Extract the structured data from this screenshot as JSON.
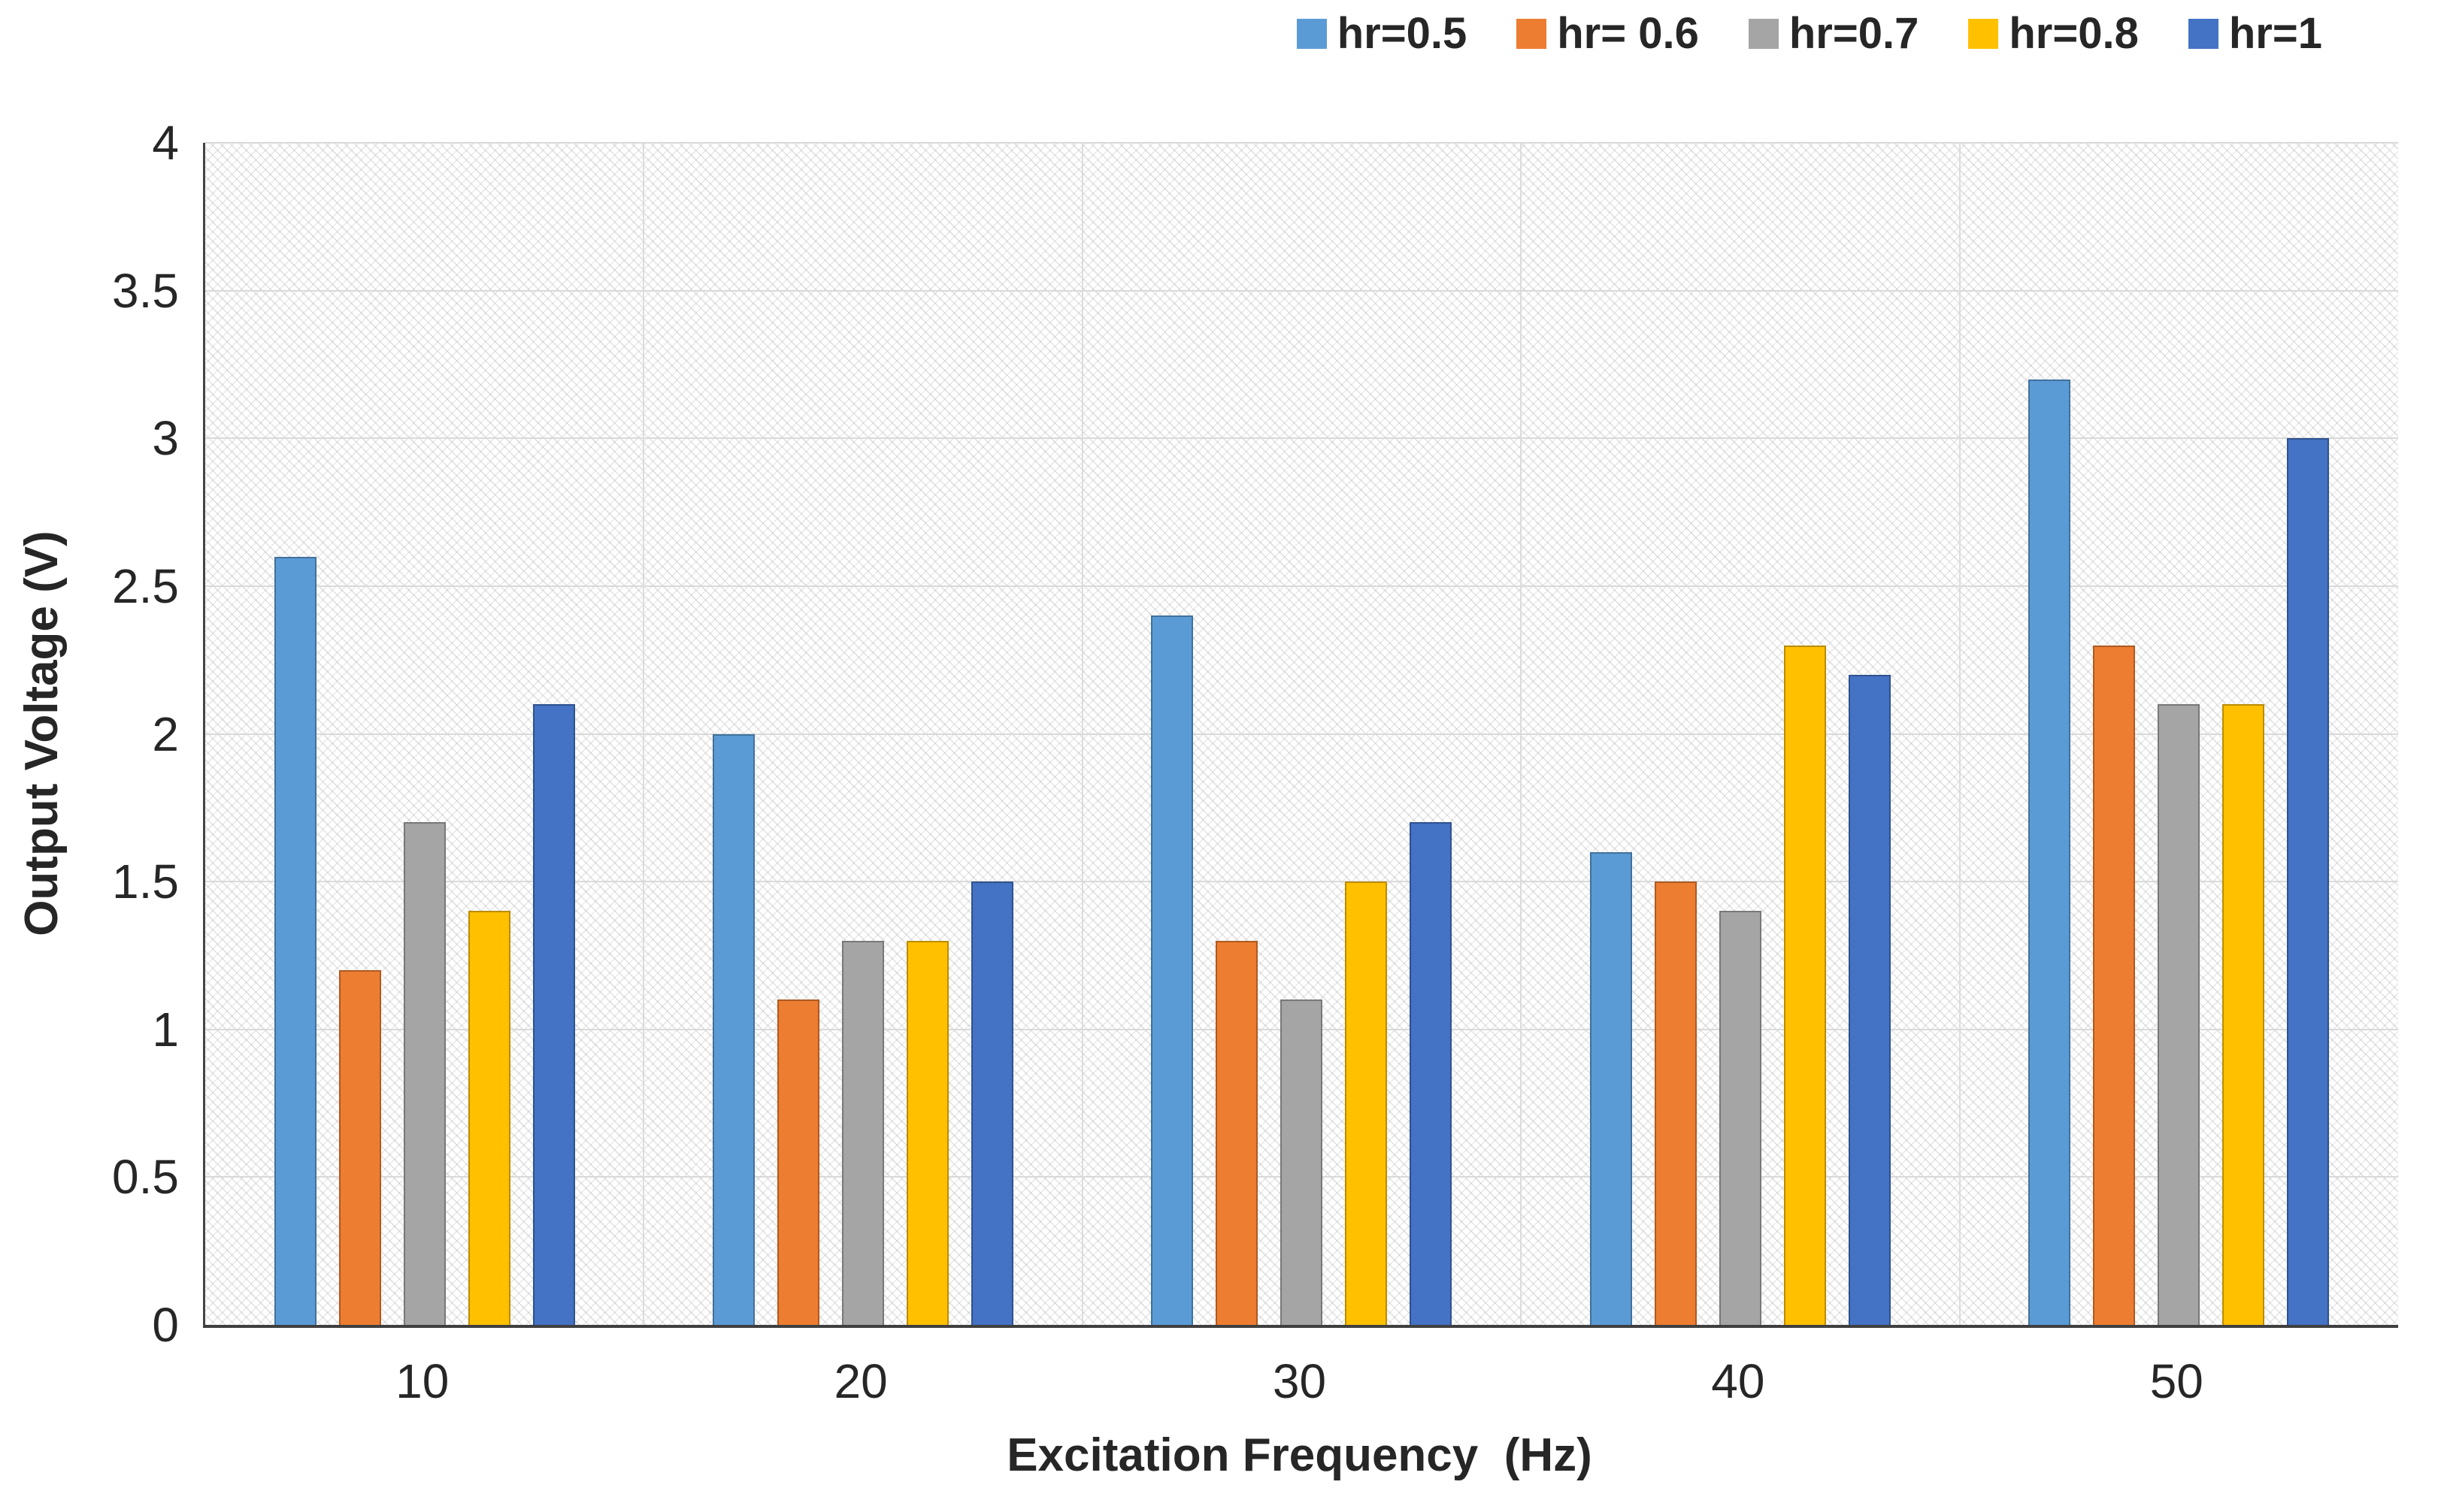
{
  "chart_data": {
    "type": "bar",
    "title": "",
    "xlabel": "Excitation Frequency  (Hz)",
    "ylabel": "Output Voltage (V)",
    "categories": [
      "10",
      "20",
      "30",
      "40",
      "50"
    ],
    "series": [
      {
        "name": "hr=0.5",
        "color": "#5B9BD5",
        "border_color": "#41719C",
        "values": [
          2.6,
          2.0,
          2.4,
          1.6,
          3.2
        ]
      },
      {
        "name": "hr= 0.6",
        "color": "#ED7D31",
        "border_color": "#AE5A21",
        "values": [
          1.2,
          1.1,
          1.3,
          1.5,
          2.3
        ]
      },
      {
        "name": "hr=0.7",
        "color": "#A5A5A5",
        "border_color": "#787878",
        "values": [
          1.7,
          1.3,
          1.1,
          1.4,
          2.1
        ]
      },
      {
        "name": "hr=0.8",
        "color": "#FFC000",
        "border_color": "#BC8C00",
        "values": [
          1.4,
          1.3,
          1.5,
          2.3,
          2.1
        ]
      },
      {
        "name": "hr=1",
        "color": "#4472C4",
        "border_color": "#2F528F",
        "values": [
          2.1,
          1.5,
          1.7,
          2.2,
          3.0
        ]
      }
    ],
    "ylim": [
      0,
      4
    ],
    "yticks": [
      0,
      0.5,
      1,
      1.5,
      2,
      2.5,
      3,
      3.5,
      4
    ],
    "ytick_labels": [
      "0",
      "0.5",
      "1",
      "1.5",
      "2",
      "2.5",
      "3",
      "3.5",
      "4"
    ],
    "grid": true,
    "gridline_color": "#d9d9d9",
    "legend_position": "top-right",
    "plot_background": "diagonal-hatch"
  }
}
